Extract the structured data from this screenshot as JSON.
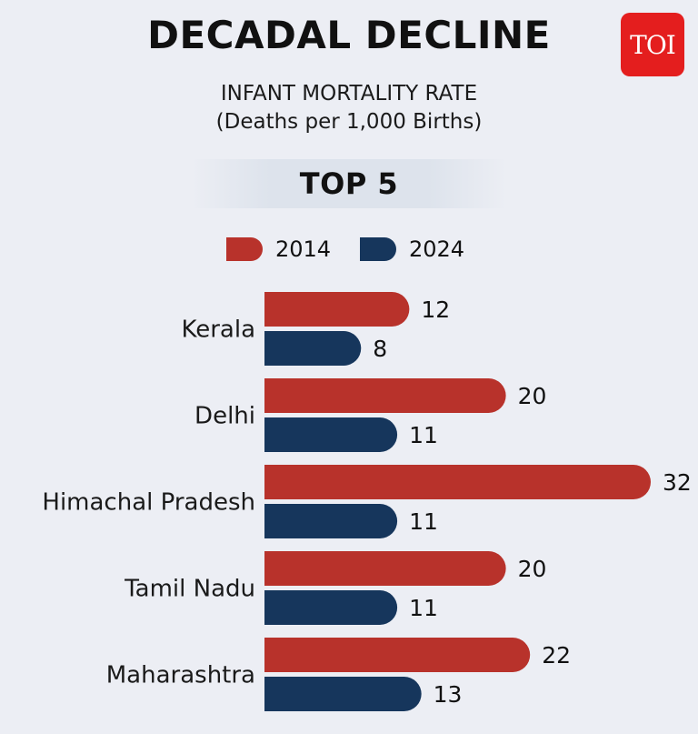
{
  "header": {
    "title": "DECADAL DECLINE",
    "logo_text": "TOI",
    "subtitle_line1": "INFANT MORTALITY RATE",
    "subtitle_line2": "(Deaths per 1,000 Births)",
    "band_label": "TOP 5"
  },
  "colors": {
    "series_2014": "#b8322b",
    "series_2024": "#16365c",
    "logo": "#e41e1e"
  },
  "chart_data": {
    "type": "bar",
    "orientation": "horizontal",
    "title": "DECADAL DECLINE",
    "subtitle": "INFANT MORTALITY RATE (Deaths per 1,000 Births)",
    "categories": [
      "Kerala",
      "Delhi",
      "Himachal Pradesh",
      "Tamil Nadu",
      "Maharashtra"
    ],
    "series": [
      {
        "name": "2014",
        "values": [
          12,
          20,
          32,
          20,
          22
        ]
      },
      {
        "name": "2024",
        "values": [
          8,
          11,
          11,
          11,
          13
        ]
      }
    ],
    "xlim": [
      0,
      32
    ],
    "grid": false,
    "legend_placement": "top-center",
    "data_labels": true
  }
}
